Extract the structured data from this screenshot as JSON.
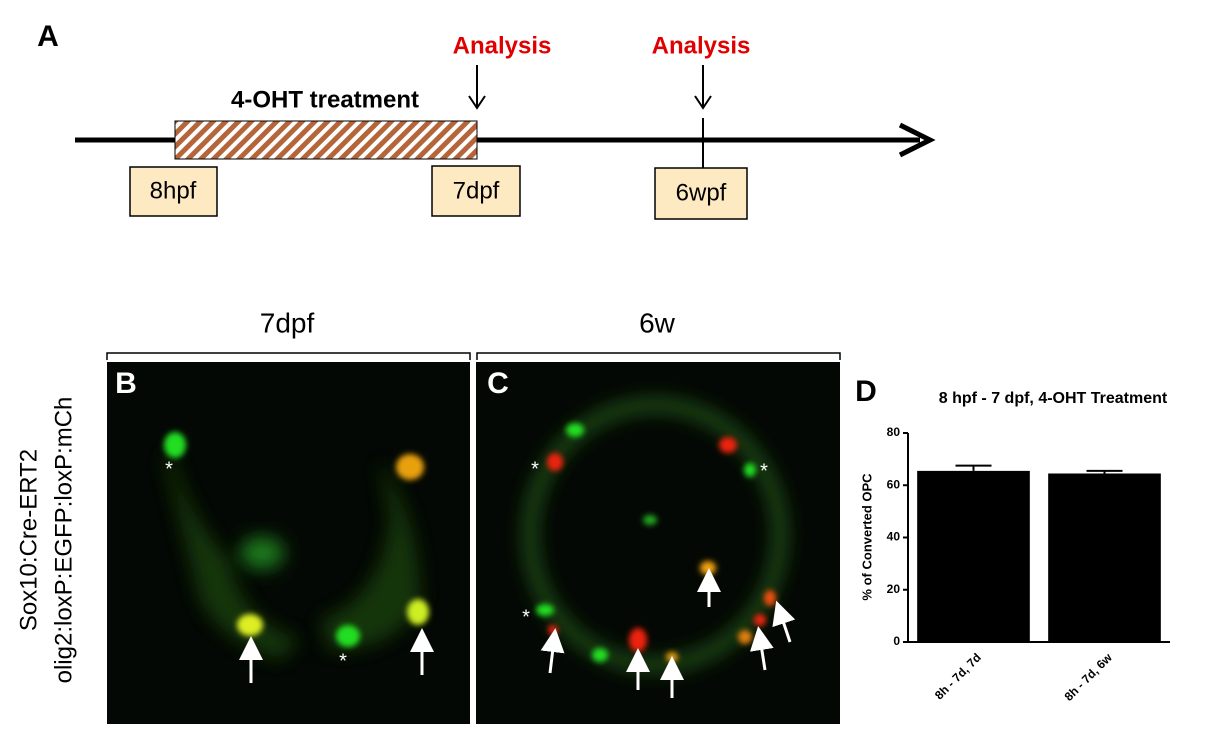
{
  "panel_a": {
    "label": "A",
    "treatment": "4-OHT treatment",
    "analysis": [
      "Analysis",
      "Analysis"
    ],
    "timepoints": [
      "8hpf",
      "7dpf",
      "6wpf"
    ]
  },
  "side_label": [
    "Sox10:Cre-ERT2",
    "olig2:loxP:EGFP:loxP:mCh"
  ],
  "panel_b": {
    "label": "B",
    "title": "7dpf"
  },
  "panel_c": {
    "label": "C",
    "title": "6w"
  },
  "asterisk": "*",
  "chart_data": {
    "type": "bar",
    "label": "D",
    "title": "8 hpf - 7 dpf, 4-OHT Treatment",
    "y_label": "% of Converted OPC",
    "categories": [
      "8h - 7d, 7d",
      "8h - 7d, 6w"
    ],
    "values": [
      65.5,
      64.5
    ],
    "errors": [
      2,
      1
    ],
    "color": "#000000",
    "ylim": [
      0,
      80
    ],
    "yticks": [
      0,
      20,
      40,
      60,
      80
    ]
  }
}
